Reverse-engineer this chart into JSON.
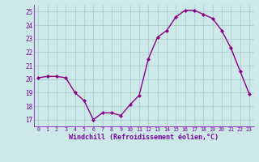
{
  "x": [
    0,
    1,
    2,
    3,
    4,
    5,
    6,
    7,
    8,
    9,
    10,
    11,
    12,
    13,
    14,
    15,
    16,
    17,
    18,
    19,
    20,
    21,
    22,
    23
  ],
  "y": [
    20.1,
    20.2,
    20.2,
    20.1,
    19.0,
    18.4,
    17.0,
    17.5,
    17.5,
    17.3,
    18.1,
    18.8,
    21.5,
    23.1,
    23.6,
    24.6,
    25.1,
    25.1,
    24.8,
    24.5,
    23.6,
    22.3,
    20.6,
    18.9
  ],
  "line_color": "#8B008B",
  "marker": "D",
  "marker_size": 2,
  "bg_color": "#cce8e8",
  "grid_color": "#aacccc",
  "xlabel": "Windchill (Refroidissement éolien,°C)",
  "xlabel_color": "#7700aa",
  "tick_color": "#7700aa",
  "ylim": [
    16.5,
    25.5
  ],
  "xlim": [
    -0.5,
    23.5
  ],
  "yticks": [
    17,
    18,
    19,
    20,
    21,
    22,
    23,
    24,
    25
  ],
  "xticks": [
    0,
    1,
    2,
    3,
    4,
    5,
    6,
    7,
    8,
    9,
    10,
    11,
    12,
    13,
    14,
    15,
    16,
    17,
    18,
    19,
    20,
    21,
    22,
    23
  ]
}
